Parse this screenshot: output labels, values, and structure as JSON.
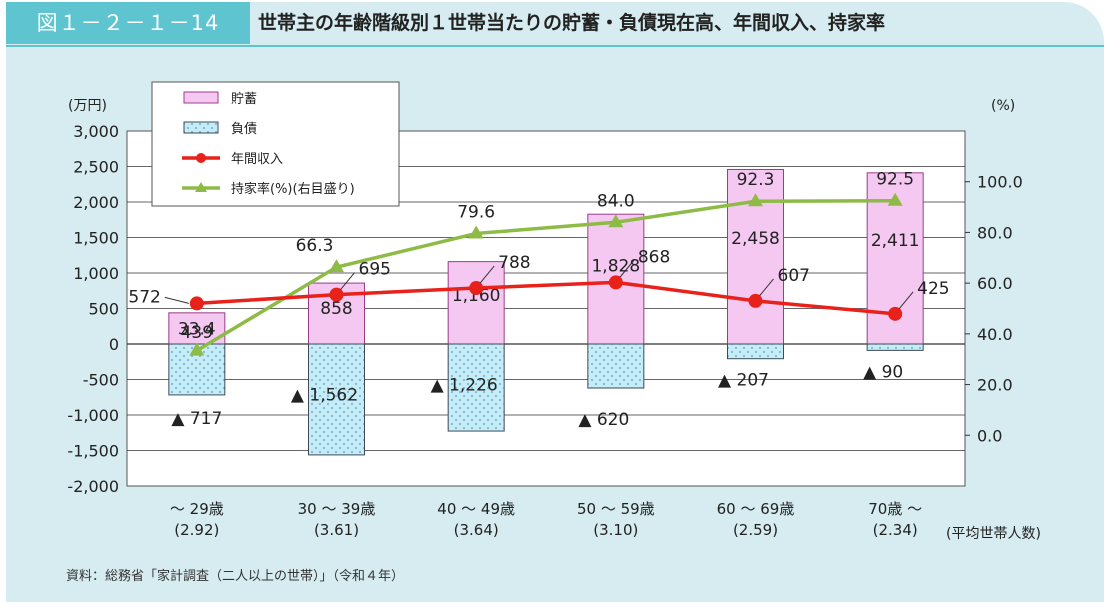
{
  "header": {
    "figure_label": "図１－２－１－14",
    "title": "世帯主の年齢階級別１世帯当たりの貯蓄・負債現在高、年間収入、持家率"
  },
  "source": "資料：総務省「家計調査（二人以上の世帯）」（令和４年）",
  "colors": {
    "savings_fill": "#f5c8f2",
    "savings_stroke": "#9a3c8a",
    "debt_fill": "#c6ecf8",
    "debt_dot": "#4b9ec6",
    "income": "#e8211a",
    "homeownership": "#8dbb45",
    "frame": "#d6ecf0",
    "accent": "#5ec4cf"
  },
  "chart_data": {
    "type": "bar",
    "categories": [
      "～ 29歳",
      "30 ～ 39歳",
      "40 ～ 49歳",
      "50 ～ 59歳",
      "60 ～ 69歳",
      "70歳 ～"
    ],
    "category_sub": [
      "(2.92)",
      "(3.61)",
      "(3.64)",
      "(3.10)",
      "(2.59)",
      "(2.34)"
    ],
    "category_sub_note": "(平均世帯人数)",
    "left_axis_unit": "(万円)",
    "right_axis_unit": "(%)",
    "ylim": [
      -2000,
      3000
    ],
    "yticks": [
      3000,
      2500,
      2000,
      1500,
      1000,
      500,
      0,
      -500,
      -1000,
      -1500,
      -2000
    ],
    "yticks_labels": [
      "3,000",
      "2,500",
      "2,000",
      "1,500",
      "1,000",
      "500",
      "0",
      "-500",
      "-1,000",
      "-1,500",
      "-2,000"
    ],
    "y2lim": [
      -20,
      120
    ],
    "y2ticks": [
      100,
      80,
      60,
      40,
      20,
      0
    ],
    "y2ticks_labels": [
      "100.0",
      "80.0",
      "60.0",
      "40.0",
      "20.0",
      "0.0"
    ],
    "grid": true,
    "legend_position": "top-left",
    "series": [
      {
        "name": "貯蓄",
        "kind": "bar",
        "values": [
          439,
          858,
          1160,
          1828,
          2458,
          2411
        ],
        "labels": [
          "439",
          "858",
          "1,160",
          "1,828",
          "2,458",
          "2,411"
        ]
      },
      {
        "name": "負債",
        "kind": "bar",
        "values": [
          -717,
          -1562,
          -1226,
          -620,
          -207,
          -90
        ],
        "labels": [
          "▲ 717",
          "▲ 1,562",
          "▲ 1,226",
          "▲ 620",
          "▲ 207",
          "▲ 90"
        ]
      },
      {
        "name": "年間収入",
        "kind": "line",
        "values": [
          572,
          695,
          788,
          868,
          607,
          425
        ],
        "labels": [
          "572",
          "695",
          "788",
          "868",
          "607",
          "425"
        ]
      },
      {
        "name": "持家率(%)(右目盛り)",
        "kind": "line",
        "axis": "right",
        "values": [
          33.4,
          66.3,
          79.6,
          84.0,
          92.3,
          92.5
        ],
        "labels": [
          "33.4",
          "66.3",
          "79.6",
          "84.0",
          "92.3",
          "92.5"
        ]
      }
    ]
  }
}
